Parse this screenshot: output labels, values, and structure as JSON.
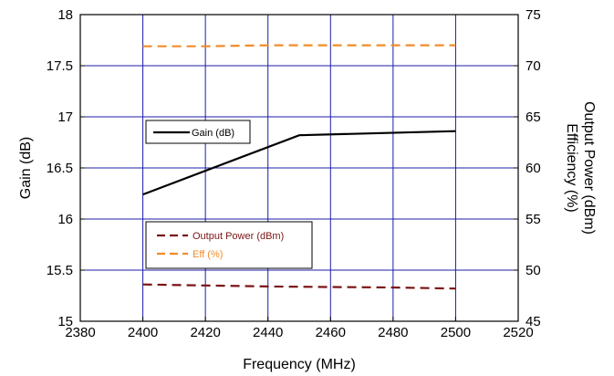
{
  "chart_data": {
    "type": "line",
    "xlabel": "Frequency (MHz)",
    "ylabel_left": "Gain (dB)",
    "ylabel_right_1": "Output Power (dBm)",
    "ylabel_right_2": "Efficiency (%)",
    "xlim": [
      2380,
      2520
    ],
    "ylim_left": [
      15,
      18
    ],
    "ylim_right": [
      45,
      75
    ],
    "x_ticks": [
      "2380",
      "2400",
      "2420",
      "2440",
      "2460",
      "2480",
      "2500",
      "2520"
    ],
    "y_left_ticks": [
      "15",
      "15.5",
      "16",
      "16.5",
      "17",
      "17.5",
      "18"
    ],
    "y_right_ticks": [
      "45",
      "50",
      "55",
      "60",
      "65",
      "70",
      "75"
    ],
    "grid": true,
    "series": [
      {
        "name": "Gain (dB)",
        "axis": "left",
        "color": "#000000",
        "style": "solid",
        "x": [
          2400,
          2450,
          2500
        ],
        "y": [
          16.24,
          16.82,
          16.86
        ]
      },
      {
        "name": "Output Power (dBm)",
        "axis": "right",
        "color": "#7a1414",
        "style": "dashed",
        "x": [
          2400,
          2420,
          2440,
          2460,
          2480,
          2500
        ],
        "y": [
          48.6,
          48.5,
          48.4,
          48.35,
          48.3,
          48.2
        ]
      },
      {
        "name": "Eff (%)",
        "axis": "right",
        "color": "#f28c28",
        "style": "dashed",
        "x": [
          2400,
          2420,
          2440,
          2460,
          2480,
          2500
        ],
        "y": [
          71.9,
          71.9,
          72.0,
          72.0,
          72.0,
          72.0
        ]
      }
    ],
    "legends": [
      {
        "entries": [
          "Gain (dB)"
        ]
      },
      {
        "entries": [
          "Output Power (dBm)",
          "Eff (%)"
        ]
      }
    ]
  }
}
